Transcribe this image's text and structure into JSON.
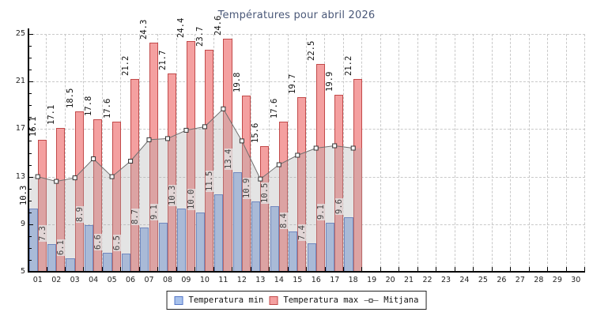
{
  "title": "Températures pour abril 2026",
  "colors": {
    "title": "#4a5878",
    "bar_min_fill": "#a8c2ec",
    "bar_min_border": "#5577c8",
    "bar_max_fill": "#f4a0a0",
    "bar_max_border": "#c24a4a",
    "mean_line": "#707070",
    "mean_marker_fill": "#ffffff",
    "mean_marker_border": "#333333",
    "mean_area_fill": "rgba(170,170,170,0.32)",
    "grid": "#c9c9c9",
    "axis": "#000000"
  },
  "chart_data": {
    "type": "bar",
    "title": "Températures pour abril 2026",
    "categories": [
      "01",
      "02",
      "03",
      "04",
      "05",
      "06",
      "07",
      "08",
      "09",
      "10",
      "11",
      "12",
      "13",
      "14",
      "15",
      "16",
      "17",
      "18",
      "19",
      "20",
      "21",
      "22",
      "23",
      "24",
      "25",
      "26",
      "27",
      "28",
      "29",
      "30"
    ],
    "series": [
      {
        "name": "Temperatura min",
        "type": "bar",
        "values": [
          10.3,
          7.3,
          6.1,
          8.9,
          6.6,
          6.5,
          8.7,
          9.1,
          10.3,
          10.0,
          11.5,
          13.4,
          10.9,
          10.5,
          8.4,
          7.4,
          9.1,
          9.6
        ]
      },
      {
        "name": "Temperatura max",
        "type": "bar",
        "values": [
          16.1,
          17.1,
          18.5,
          17.8,
          17.6,
          21.2,
          24.3,
          21.7,
          24.4,
          23.7,
          24.6,
          19.8,
          15.6,
          17.6,
          19.7,
          22.5,
          19.9,
          21.2
        ]
      },
      {
        "name": "Mitjana",
        "type": "line",
        "values": [
          13.0,
          12.6,
          12.9,
          14.5,
          13.0,
          14.3,
          16.1,
          16.2,
          16.9,
          17.2,
          18.7,
          16.0,
          12.8,
          14.0,
          14.8,
          15.4,
          15.6,
          15.4
        ]
      }
    ],
    "xlabel": "",
    "ylabel": "",
    "ylim": [
      5,
      25
    ],
    "yticks": [
      5,
      9,
      13,
      17,
      21,
      25
    ],
    "y_minor_step": 1,
    "grid": true,
    "legend_position": "bottom",
    "value_labels": "one decimal, rotated 90° above each bar"
  }
}
